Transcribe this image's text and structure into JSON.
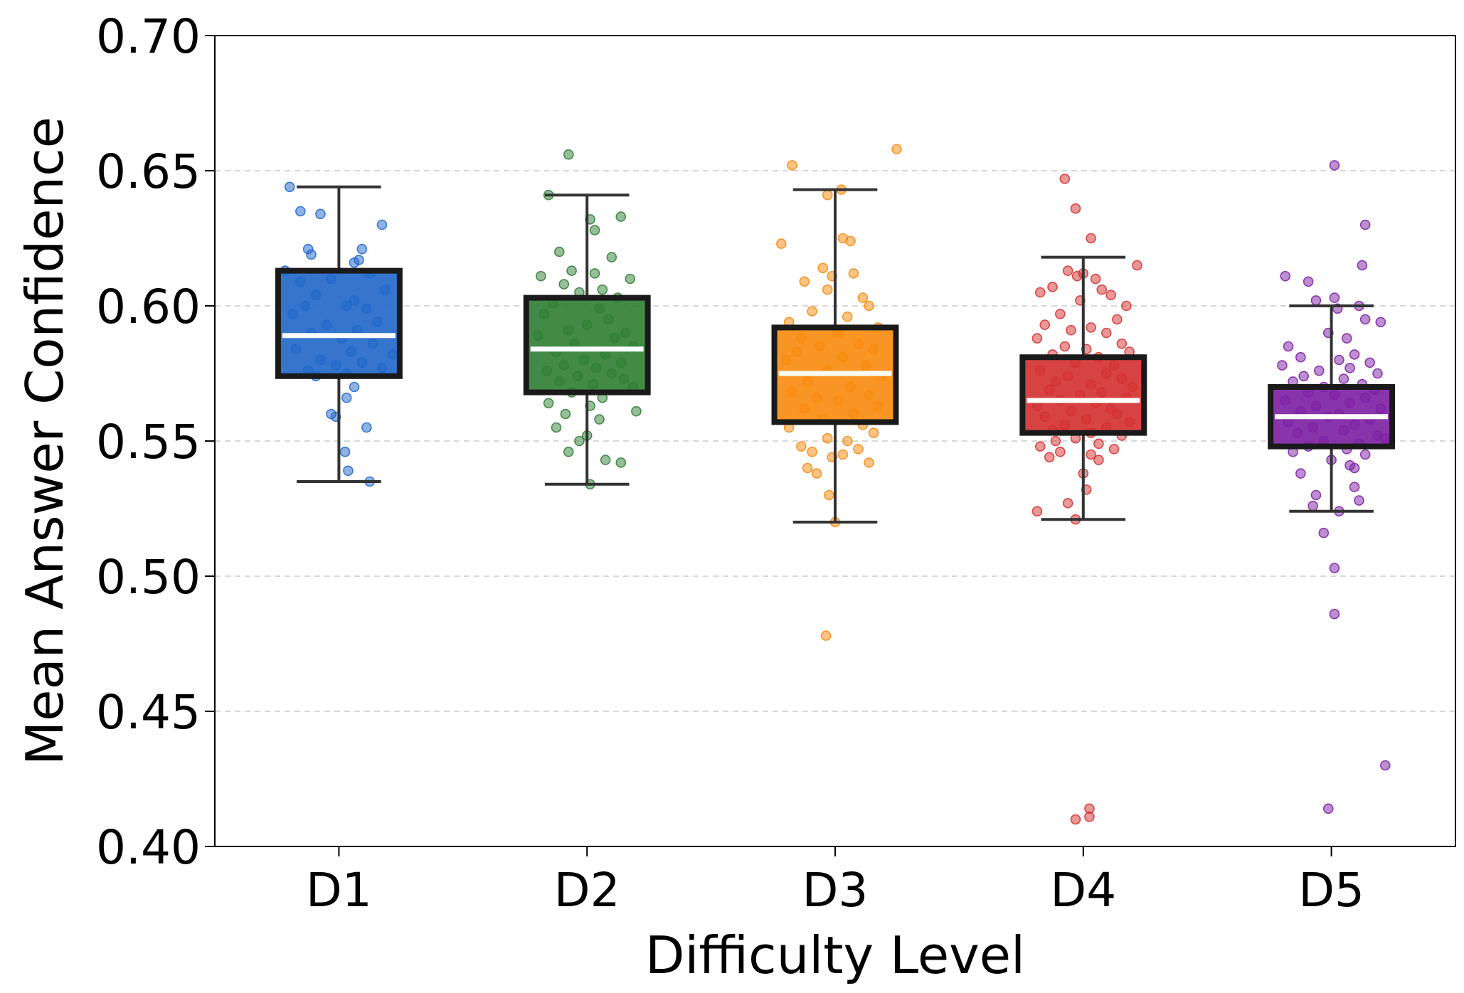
{
  "chart_data": {
    "type": "box",
    "title": "",
    "xlabel": "Difficulty Level",
    "ylabel": "Mean Answer Confidence",
    "ylim": [
      0.4,
      0.7
    ],
    "yticks": [
      "0.40",
      "0.45",
      "0.50",
      "0.55",
      "0.60",
      "0.65",
      "0.70"
    ],
    "ytick_values": [
      0.4,
      0.45,
      0.5,
      0.55,
      0.6,
      0.65,
      0.7
    ],
    "grid": "horizontal dashed",
    "categories": [
      "D1",
      "D2",
      "D3",
      "D4",
      "D5"
    ],
    "series": [
      {
        "name": "D1",
        "color": "#1f66c9",
        "whisker_low": 0.535,
        "q1": 0.574,
        "median": 0.589,
        "q3": 0.613,
        "whisker_high": 0.644,
        "points": [
          0.644,
          0.635,
          0.634,
          0.63,
          0.621,
          0.621,
          0.619,
          0.617,
          0.616,
          0.613,
          0.612,
          0.61,
          0.609,
          0.606,
          0.604,
          0.602,
          0.6,
          0.6,
          0.599,
          0.597,
          0.594,
          0.593,
          0.591,
          0.59,
          0.588,
          0.586,
          0.584,
          0.583,
          0.582,
          0.58,
          0.579,
          0.578,
          0.577,
          0.576,
          0.575,
          0.574,
          0.57,
          0.566,
          0.56,
          0.559,
          0.555,
          0.546,
          0.539,
          0.535
        ],
        "offsets": [
          -0.32,
          -0.25,
          -0.12,
          0.28,
          -0.2,
          0.15,
          -0.18,
          0.13,
          0.1,
          -0.35,
          0.2,
          -0.05,
          -0.25,
          0.3,
          -0.15,
          0.1,
          -0.22,
          0.05,
          0.18,
          -0.3,
          0.25,
          -0.08,
          0.12,
          -0.18,
          0.02,
          0.22,
          -0.28,
          0.08,
          0.35,
          -0.12,
          0.15,
          -0.02,
          0.28,
          -0.2,
          0.05,
          -0.15,
          0.1,
          0.05,
          -0.05,
          -0.02,
          0.18,
          0.04,
          0.06,
          0.2
        ]
      },
      {
        "name": "D2",
        "color": "#2e7d32",
        "whisker_low": 0.534,
        "q1": 0.568,
        "median": 0.584,
        "q3": 0.603,
        "whisker_high": 0.641,
        "points": [
          0.656,
          0.641,
          0.633,
          0.632,
          0.628,
          0.62,
          0.618,
          0.613,
          0.612,
          0.611,
          0.61,
          0.608,
          0.606,
          0.605,
          0.603,
          0.601,
          0.599,
          0.597,
          0.595,
          0.593,
          0.591,
          0.59,
          0.589,
          0.588,
          0.586,
          0.585,
          0.583,
          0.582,
          0.58,
          0.579,
          0.578,
          0.577,
          0.576,
          0.575,
          0.574,
          0.573,
          0.572,
          0.571,
          0.57,
          0.568,
          0.566,
          0.564,
          0.563,
          0.561,
          0.56,
          0.558,
          0.555,
          0.552,
          0.55,
          0.546,
          0.543,
          0.542,
          0.534
        ],
        "offsets": [
          -0.12,
          -0.25,
          0.22,
          0.02,
          0.05,
          -0.18,
          0.16,
          -0.1,
          0.05,
          -0.3,
          0.28,
          -0.15,
          0.1,
          -0.05,
          0.2,
          -0.22,
          0.08,
          -0.28,
          0.14,
          0.0,
          -0.12,
          0.25,
          -0.32,
          0.18,
          -0.08,
          0.3,
          -0.2,
          0.12,
          -0.02,
          0.22,
          -0.15,
          0.06,
          -0.26,
          0.16,
          -0.06,
          0.24,
          -0.18,
          0.04,
          0.3,
          -0.1,
          0.1,
          -0.25,
          0.02,
          0.32,
          -0.14,
          0.08,
          -0.2,
          0.0,
          -0.05,
          -0.12,
          0.12,
          0.22,
          0.02
        ]
      },
      {
        "name": "D3",
        "color": "#f7890c",
        "whisker_low": 0.52,
        "q1": 0.557,
        "median": 0.575,
        "q3": 0.592,
        "whisker_high": 0.643,
        "points": [
          0.658,
          0.652,
          0.643,
          0.641,
          0.625,
          0.624,
          0.623,
          0.614,
          0.612,
          0.611,
          0.609,
          0.606,
          0.603,
          0.6,
          0.598,
          0.596,
          0.594,
          0.592,
          0.59,
          0.588,
          0.586,
          0.585,
          0.584,
          0.583,
          0.581,
          0.58,
          0.578,
          0.576,
          0.574,
          0.572,
          0.57,
          0.568,
          0.567,
          0.566,
          0.565,
          0.563,
          0.562,
          0.56,
          0.558,
          0.556,
          0.555,
          0.553,
          0.551,
          0.55,
          0.548,
          0.547,
          0.546,
          0.545,
          0.544,
          0.542,
          0.54,
          0.538,
          0.53,
          0.52,
          0.478
        ],
        "offsets": [
          0.4,
          -0.28,
          0.04,
          -0.05,
          0.05,
          0.1,
          -0.35,
          -0.08,
          0.12,
          -0.02,
          -0.2,
          -0.05,
          0.18,
          0.22,
          -0.15,
          0.08,
          -0.3,
          0.28,
          0.02,
          -0.22,
          0.15,
          -0.1,
          0.25,
          -0.25,
          0.05,
          -0.32,
          0.2,
          -0.05,
          0.3,
          -0.18,
          0.1,
          -0.28,
          0.22,
          -0.12,
          0.02,
          0.28,
          -0.2,
          0.12,
          -0.08,
          0.18,
          -0.3,
          0.25,
          -0.05,
          0.08,
          -0.22,
          0.15,
          -0.15,
          0.05,
          -0.02,
          0.22,
          -0.18,
          -0.12,
          -0.04,
          0.0,
          -0.06
        ]
      },
      {
        "name": "D4",
        "color": "#d32f2f",
        "whisker_low": 0.521,
        "q1": 0.553,
        "median": 0.565,
        "q3": 0.581,
        "whisker_high": 0.618,
        "points": [
          0.647,
          0.636,
          0.625,
          0.615,
          0.613,
          0.612,
          0.611,
          0.61,
          0.607,
          0.606,
          0.605,
          0.604,
          0.602,
          0.6,
          0.597,
          0.595,
          0.593,
          0.592,
          0.591,
          0.59,
          0.588,
          0.586,
          0.585,
          0.584,
          0.583,
          0.582,
          0.581,
          0.579,
          0.578,
          0.576,
          0.575,
          0.574,
          0.573,
          0.572,
          0.571,
          0.57,
          0.569,
          0.568,
          0.567,
          0.566,
          0.565,
          0.564,
          0.563,
          0.562,
          0.561,
          0.56,
          0.559,
          0.558,
          0.557,
          0.556,
          0.555,
          0.554,
          0.553,
          0.552,
          0.551,
          0.55,
          0.549,
          0.548,
          0.547,
          0.546,
          0.545,
          0.544,
          0.543,
          0.538,
          0.532,
          0.527,
          0.524,
          0.521,
          0.414,
          0.411,
          0.41
        ],
        "offsets": [
          -0.12,
          -0.05,
          0.05,
          0.35,
          -0.1,
          0.0,
          -0.04,
          0.08,
          -0.2,
          0.12,
          -0.28,
          0.18,
          -0.02,
          0.28,
          -0.15,
          0.22,
          -0.25,
          0.05,
          -0.08,
          0.15,
          -0.3,
          0.25,
          -0.12,
          0.02,
          0.3,
          -0.2,
          0.1,
          -0.05,
          0.2,
          -0.28,
          0.15,
          -0.1,
          0.25,
          -0.18,
          0.05,
          0.32,
          -0.22,
          0.12,
          -0.02,
          0.28,
          -0.15,
          0.08,
          -0.3,
          0.18,
          -0.08,
          0.22,
          -0.25,
          0.02,
          0.3,
          -0.12,
          0.15,
          -0.2,
          0.05,
          0.25,
          -0.05,
          -0.18,
          0.1,
          -0.28,
          0.2,
          -0.15,
          0.05,
          -0.22,
          0.1,
          0.0,
          0.02,
          -0.1,
          -0.3,
          -0.05,
          0.04,
          0.04,
          -0.05
        ]
      },
      {
        "name": "D5",
        "color": "#7b1fa2",
        "whisker_low": 0.524,
        "q1": 0.548,
        "median": 0.559,
        "q3": 0.57,
        "whisker_high": 0.6,
        "points": [
          0.652,
          0.63,
          0.615,
          0.611,
          0.609,
          0.603,
          0.602,
          0.6,
          0.599,
          0.595,
          0.594,
          0.59,
          0.588,
          0.585,
          0.582,
          0.581,
          0.58,
          0.579,
          0.578,
          0.577,
          0.576,
          0.575,
          0.574,
          0.573,
          0.572,
          0.571,
          0.57,
          0.569,
          0.568,
          0.567,
          0.566,
          0.565,
          0.564,
          0.563,
          0.562,
          0.561,
          0.56,
          0.559,
          0.558,
          0.557,
          0.556,
          0.555,
          0.554,
          0.553,
          0.552,
          0.551,
          0.55,
          0.549,
          0.548,
          0.547,
          0.546,
          0.545,
          0.543,
          0.541,
          0.54,
          0.538,
          0.533,
          0.53,
          0.528,
          0.526,
          0.524,
          0.516,
          0.503,
          0.486,
          0.43,
          0.414
        ],
        "offsets": [
          0.02,
          0.22,
          0.2,
          -0.3,
          -0.15,
          0.02,
          -0.1,
          0.18,
          0.04,
          0.22,
          0.32,
          -0.02,
          0.1,
          -0.28,
          0.15,
          -0.2,
          0.05,
          0.25,
          -0.32,
          0.12,
          -0.08,
          0.3,
          -0.18,
          0.08,
          -0.25,
          0.2,
          -0.05,
          0.28,
          -0.15,
          0.02,
          0.22,
          -0.3,
          0.12,
          -0.1,
          0.32,
          -0.2,
          0.05,
          -0.02,
          0.25,
          -0.28,
          0.15,
          -0.12,
          0.08,
          -0.22,
          0.3,
          0.35,
          -0.05,
          0.18,
          -0.15,
          0.1,
          -0.25,
          0.22,
          0.0,
          0.12,
          0.15,
          -0.2,
          0.15,
          -0.1,
          0.18,
          -0.12,
          0.05,
          -0.05,
          0.02,
          0.02,
          0.35,
          -0.02
        ]
      }
    ]
  }
}
